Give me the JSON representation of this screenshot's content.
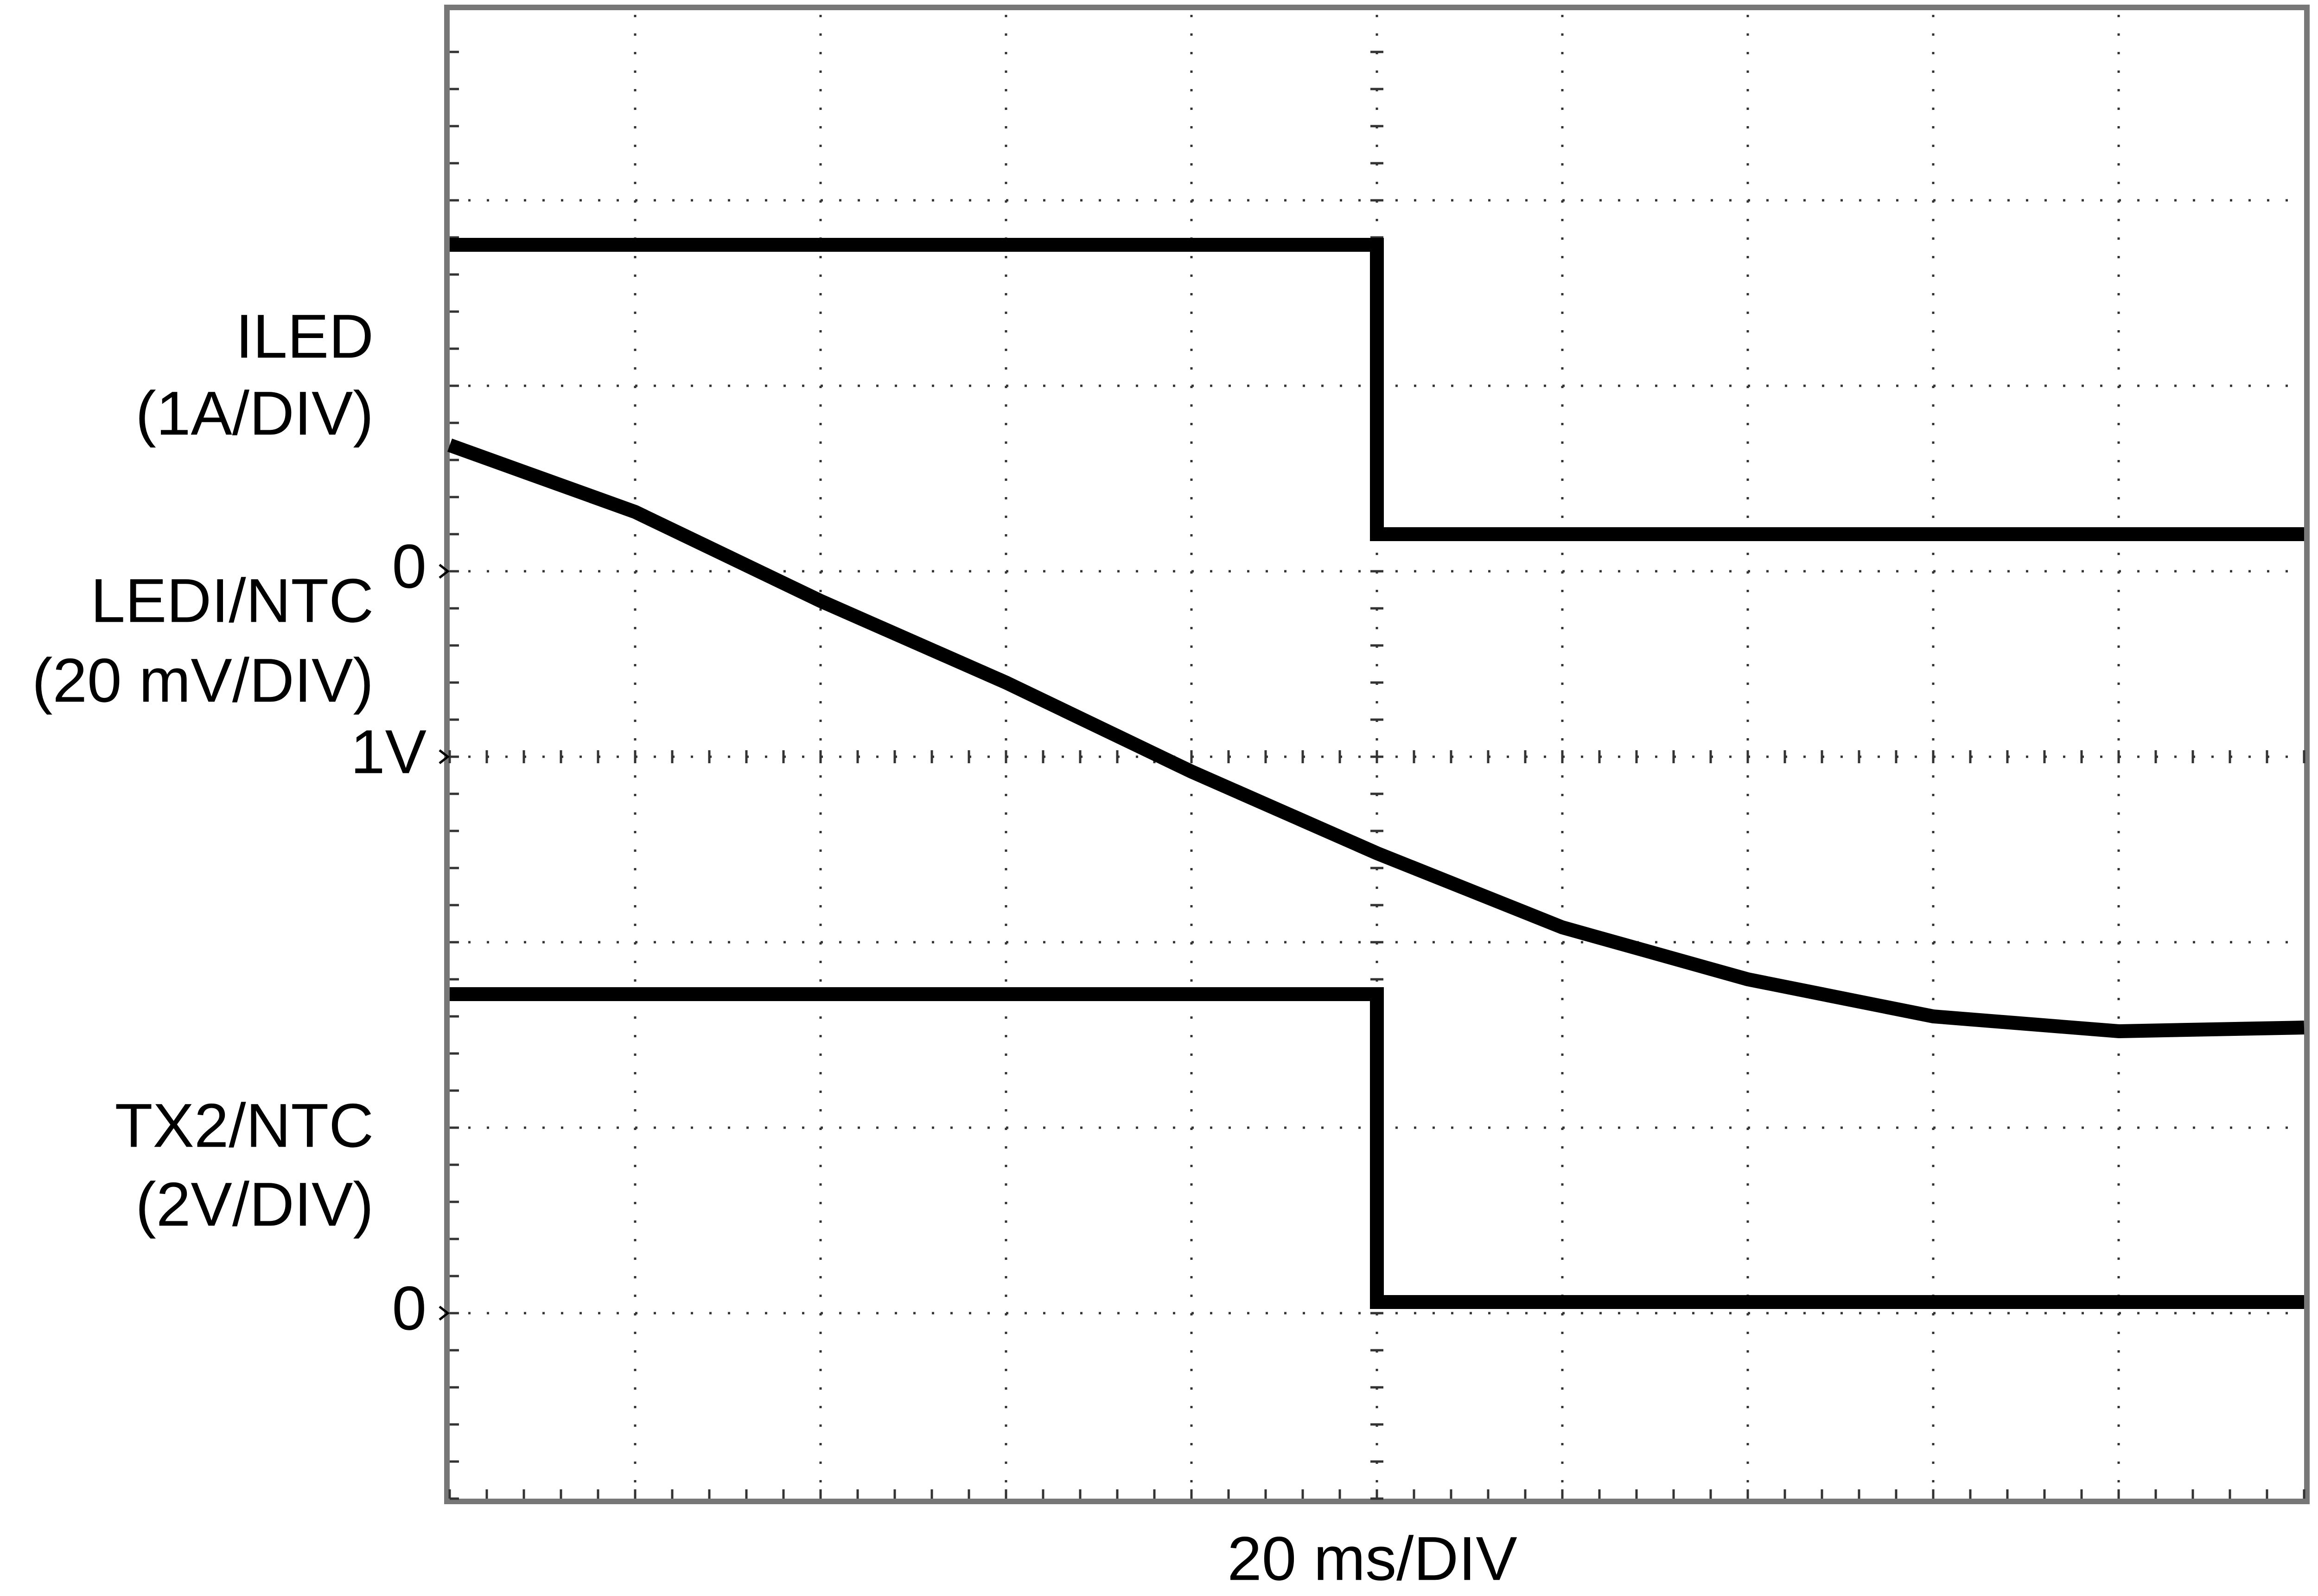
{
  "chart_data": {
    "type": "line",
    "xlabel": "20 ms/DIV",
    "xlim": [
      0,
      10
    ],
    "ylim": [
      0,
      8
    ],
    "grid": true,
    "x": [
      0,
      1,
      2,
      3,
      4,
      5,
      5,
      6,
      7,
      8,
      9,
      10
    ],
    "series": [
      {
        "name": "ILED",
        "scale": "(1A/DIV)",
        "color": "#000000",
        "values": [
          6.76,
          6.76,
          6.76,
          6.76,
          6.76,
          6.76,
          5.2,
          5.2,
          5.2,
          5.2,
          5.2,
          5.2
        ]
      },
      {
        "name": "LEDI/NTC",
        "scale": "(20 mV/DIV)",
        "color": "#000000",
        "values": [
          5.68,
          5.32,
          4.84,
          4.4,
          3.92,
          3.48,
          3.48,
          3.08,
          2.8,
          2.6,
          2.52,
          2.54
        ]
      },
      {
        "name": "TX2/NTC",
        "scale": "(2V/DIV)",
        "color": "#000000",
        "values": [
          2.72,
          2.72,
          2.72,
          2.72,
          2.72,
          2.72,
          1.06,
          1.06,
          1.06,
          1.06,
          1.06,
          1.06
        ]
      }
    ],
    "annotations": [
      {
        "text": "0",
        "y": 5
      },
      {
        "text": "1V",
        "y": 4
      },
      {
        "text": "0",
        "y": 1
      }
    ]
  }
}
